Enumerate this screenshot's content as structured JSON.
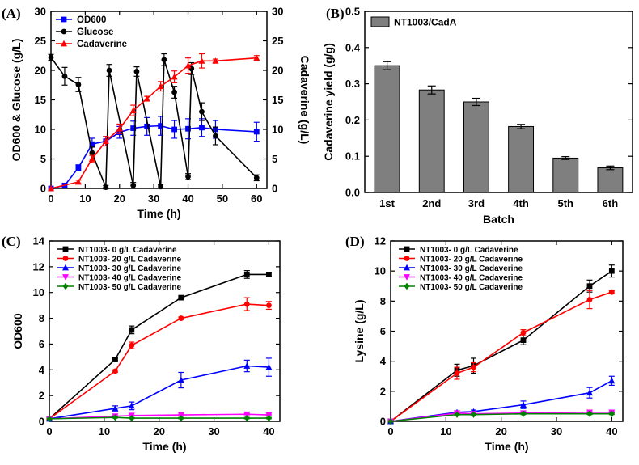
{
  "chart_data": [
    {
      "type": "line",
      "panel_label": "(A)",
      "xlabel": "Time (h)",
      "ylabel": "OD600 & Glucose (g/L)",
      "y2label": "Cadaverine (g/L)",
      "xlim": [
        0,
        63
      ],
      "ylim": [
        0,
        30
      ],
      "y2lim": [
        0,
        30
      ],
      "xticks": [
        0,
        10,
        20,
        30,
        40,
        50,
        60
      ],
      "yticks": [
        0,
        5,
        10,
        15,
        20,
        25,
        30
      ],
      "y2ticks": [
        0,
        5,
        10,
        15,
        20,
        25,
        30
      ],
      "legend_position": "top-left",
      "series": [
        {
          "name": "OD600",
          "color": "#0000ff",
          "marker": "square",
          "axis": "left",
          "x": [
            0,
            4,
            8,
            12,
            16,
            20,
            24,
            28,
            32,
            36,
            40,
            44,
            48,
            60
          ],
          "y": [
            0,
            0.5,
            3.5,
            7.5,
            8.0,
            9.5,
            10.2,
            10.5,
            10.6,
            10.0,
            10.1,
            10.3,
            10.0,
            9.6
          ],
          "err": [
            0,
            0.3,
            0.5,
            1.0,
            0.8,
            1.0,
            1.2,
            1.5,
            1.6,
            1.5,
            1.7,
            1.5,
            1.5,
            1.6
          ]
        },
        {
          "name": "Glucose",
          "color": "#000000",
          "marker": "circle",
          "axis": "left",
          "x": [
            0,
            4,
            8,
            12,
            16,
            17,
            24,
            25,
            32,
            33,
            36,
            40,
            41,
            44,
            48,
            60
          ],
          "y": [
            22.2,
            19.0,
            17.6,
            6.0,
            0.2,
            20.0,
            0.5,
            19.8,
            0.3,
            21.8,
            16.3,
            2.0,
            20.3,
            13.0,
            8.9,
            1.8
          ],
          "err": [
            0.5,
            1.5,
            1.2,
            1.0,
            0.3,
            1.0,
            0.5,
            0.8,
            0.3,
            1.0,
            1.0,
            0.5,
            1.0,
            1.5,
            1.5,
            0.5
          ]
        },
        {
          "name": "Cadaverine",
          "color": "#ff0000",
          "marker": "triangle",
          "axis": "right",
          "x": [
            0,
            8,
            12,
            16,
            20,
            24,
            28,
            32,
            36,
            40,
            44,
            48,
            60
          ],
          "y": [
            0,
            1.1,
            5.0,
            8.0,
            10.1,
            13.2,
            15.2,
            17.3,
            18.9,
            20.8,
            21.6,
            21.6,
            22.1
          ],
          "err": [
            0,
            0.3,
            0.6,
            0.8,
            0.8,
            0.9,
            0.4,
            0.8,
            1.0,
            1.3,
            1.2,
            0.3,
            0.4
          ]
        }
      ]
    },
    {
      "type": "bar",
      "panel_label": "(B)",
      "xlabel": "Batch",
      "ylabel": "Cadaverine yield (g/g)",
      "ylim": [
        0,
        0.5
      ],
      "yticks": [
        "0.0",
        "0.1",
        "0.2",
        "0.3",
        "0.4",
        "0.5"
      ],
      "legend_position": "top-left",
      "categories": [
        "1st",
        "2nd",
        "3rd",
        "4th",
        "5th",
        "6th"
      ],
      "series": [
        {
          "name": "NT1003/CadA",
          "color": "#7f7f7f",
          "values": [
            0.35,
            0.283,
            0.25,
            0.182,
            0.095,
            0.068
          ],
          "err": [
            0.011,
            0.011,
            0.01,
            0.006,
            0.004,
            0.005
          ]
        }
      ]
    },
    {
      "type": "line",
      "panel_label": "(C)",
      "xlabel": "Time (h)",
      "ylabel": "OD600",
      "xlim": [
        0,
        42
      ],
      "ylim": [
        0,
        14
      ],
      "xticks": [
        0,
        10,
        20,
        30,
        40
      ],
      "yticks": [
        0,
        2,
        4,
        6,
        8,
        10,
        12,
        14
      ],
      "legend_position": "top-left",
      "series": [
        {
          "name": "NT1003- 0 g/L Cadaverine",
          "color": "#000000",
          "marker": "square",
          "x": [
            0,
            12,
            15,
            24,
            36,
            40
          ],
          "y": [
            0.2,
            4.8,
            7.1,
            9.6,
            11.4,
            11.4
          ],
          "err": [
            0,
            0.1,
            0.3,
            0.1,
            0.3,
            0.15
          ]
        },
        {
          "name": "NT1003- 20 g/L Cadaverine",
          "color": "#ff0000",
          "marker": "circle",
          "x": [
            0,
            12,
            15,
            24,
            36,
            40
          ],
          "y": [
            0.2,
            3.9,
            5.9,
            8.0,
            9.1,
            9.0
          ],
          "err": [
            0,
            0.1,
            0.25,
            0.1,
            0.5,
            0.3
          ]
        },
        {
          "name": "NT1003- 30 g/L Cadaverine",
          "color": "#0000ff",
          "marker": "triangle",
          "x": [
            0,
            12,
            15,
            24,
            36,
            40
          ],
          "y": [
            0.2,
            1.0,
            1.2,
            3.2,
            4.3,
            4.2
          ],
          "err": [
            0,
            0.2,
            0.3,
            0.6,
            0.45,
            0.7
          ]
        },
        {
          "name": "NT1003- 40 g/L Cadaverine",
          "color": "#ff00ff",
          "marker": "triangle-down",
          "x": [
            0,
            12,
            15,
            24,
            36,
            40
          ],
          "y": [
            0.2,
            0.4,
            0.45,
            0.5,
            0.55,
            0.5
          ],
          "err": [
            0,
            0.05,
            0.05,
            0.05,
            0.05,
            0.05
          ]
        },
        {
          "name": "NT1003- 50 g/L Cadaverine",
          "color": "#008000",
          "marker": "diamond",
          "x": [
            0,
            12,
            15,
            24,
            36,
            40
          ],
          "y": [
            0.2,
            0.3,
            0.25,
            0.25,
            0.25,
            0.25
          ],
          "err": [
            0,
            0.05,
            0.05,
            0.05,
            0.05,
            0.05
          ]
        }
      ]
    },
    {
      "type": "line",
      "panel_label": "(D)",
      "xlabel": "Time (h)",
      "ylabel": "Lysine (g/L)",
      "xlim": [
        0,
        42
      ],
      "ylim": [
        0,
        12
      ],
      "xticks": [
        0,
        10,
        20,
        30,
        40
      ],
      "yticks": [
        0,
        2,
        4,
        6,
        8,
        10,
        12
      ],
      "legend_position": "top-left",
      "series": [
        {
          "name": "NT1003- 0 g/L Cadaverine",
          "color": "#000000",
          "marker": "square",
          "x": [
            0,
            12,
            15,
            24,
            36,
            40
          ],
          "y": [
            0,
            3.4,
            3.7,
            5.4,
            9.0,
            10.0
          ],
          "err": [
            0,
            0.4,
            0.5,
            0.3,
            0.4,
            0.4
          ]
        },
        {
          "name": "NT1003- 20 g/L Cadaverine",
          "color": "#ff0000",
          "marker": "circle",
          "x": [
            0,
            12,
            15,
            24,
            36,
            40
          ],
          "y": [
            0,
            3.2,
            3.6,
            5.9,
            8.1,
            8.6
          ],
          "err": [
            0,
            0.4,
            0.3,
            0.2,
            0.6,
            0.1
          ]
        },
        {
          "name": "NT1003- 30 g/L Cadaverine",
          "color": "#0000ff",
          "marker": "triangle",
          "x": [
            0,
            12,
            15,
            24,
            36,
            40
          ],
          "y": [
            0,
            0.6,
            0.65,
            1.1,
            1.9,
            2.7
          ],
          "err": [
            0,
            0.1,
            0.1,
            0.25,
            0.35,
            0.3
          ]
        },
        {
          "name": "NT1003- 40 g/L Cadaverine",
          "color": "#ff00ff",
          "marker": "triangle-down",
          "x": [
            0,
            12,
            15,
            24,
            36,
            40
          ],
          "y": [
            0,
            0.55,
            0.5,
            0.55,
            0.6,
            0.6
          ],
          "err": [
            0,
            0.05,
            0.05,
            0.05,
            0.05,
            0.05
          ]
        },
        {
          "name": "NT1003- 50 g/L Cadaverine",
          "color": "#008000",
          "marker": "diamond",
          "x": [
            0,
            12,
            15,
            24,
            36,
            40
          ],
          "y": [
            0,
            0.45,
            0.45,
            0.5,
            0.5,
            0.5
          ],
          "err": [
            0,
            0.05,
            0.05,
            0.05,
            0.05,
            0.05
          ]
        }
      ]
    }
  ]
}
